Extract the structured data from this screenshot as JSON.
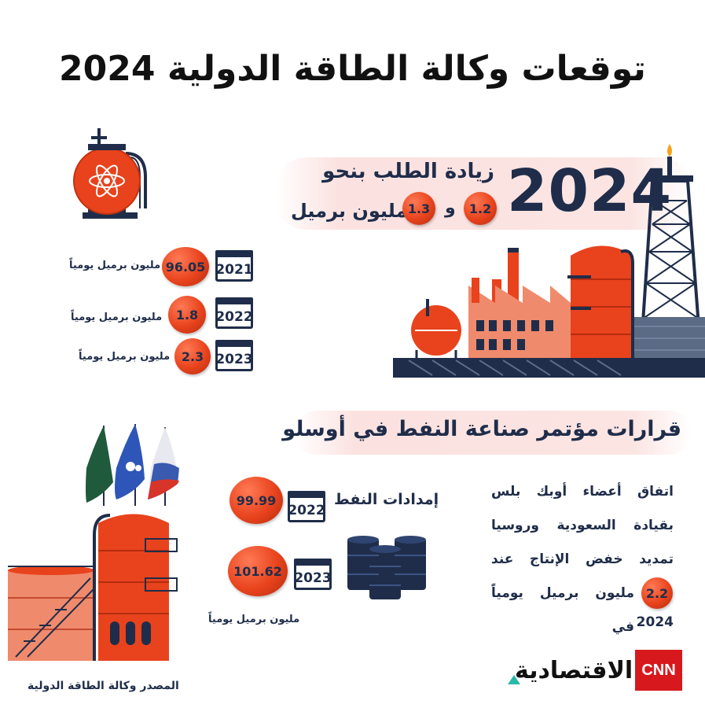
{
  "title": "توقعات وكالة الطاقة الدولية 2024",
  "demand": {
    "year": "2024",
    "line1": "زيادة الطلب بنحو",
    "val_a": "1.2",
    "conj": "و",
    "val_b": "1.3",
    "unit": "مليون برميل"
  },
  "history": [
    {
      "year": "2021",
      "value": "96.05",
      "unit": "مليون برميل يومياً"
    },
    {
      "year": "2022",
      "value": "1.8",
      "unit": "مليون برميل يومياً"
    },
    {
      "year": "2023",
      "value": "2.3",
      "unit": "مليون برميل يومياً"
    }
  ],
  "oslo": {
    "heading": "قرارات مؤتمر صناعة النفط في أوسلو",
    "text_l1": "اتفاق أعضاء أوبك بلس",
    "text_l2": "بقيادة السعودية وروسيا",
    "text_l3": "تمديد خفض الإنتاج عند",
    "text_l4_val": "2.2",
    "text_l4_rest": "مليون برميل يومياً في",
    "text_l5": "2024"
  },
  "supply": {
    "label": "إمدادات النفط",
    "rows": [
      {
        "year": "2022",
        "value": "99.99"
      },
      {
        "year": "2023",
        "value": "101.62"
      }
    ],
    "unit": "مليون برميل يومياً"
  },
  "footer": {
    "source": "المصدر وكالة الطاقة الدولية",
    "brand_ar": "الاقتصادية",
    "brand_cnn": "CNN"
  },
  "colors": {
    "accent": "#e8431d",
    "navy": "#1f2d4a",
    "pink": "#fbe2e0"
  },
  "icons": [
    "gas-tank-atom-icon",
    "refinery-illustration",
    "oil-rig-icon",
    "calendar-icon",
    "oil-barrels-icon",
    "flags-illustration",
    "storage-tank-illustration"
  ]
}
